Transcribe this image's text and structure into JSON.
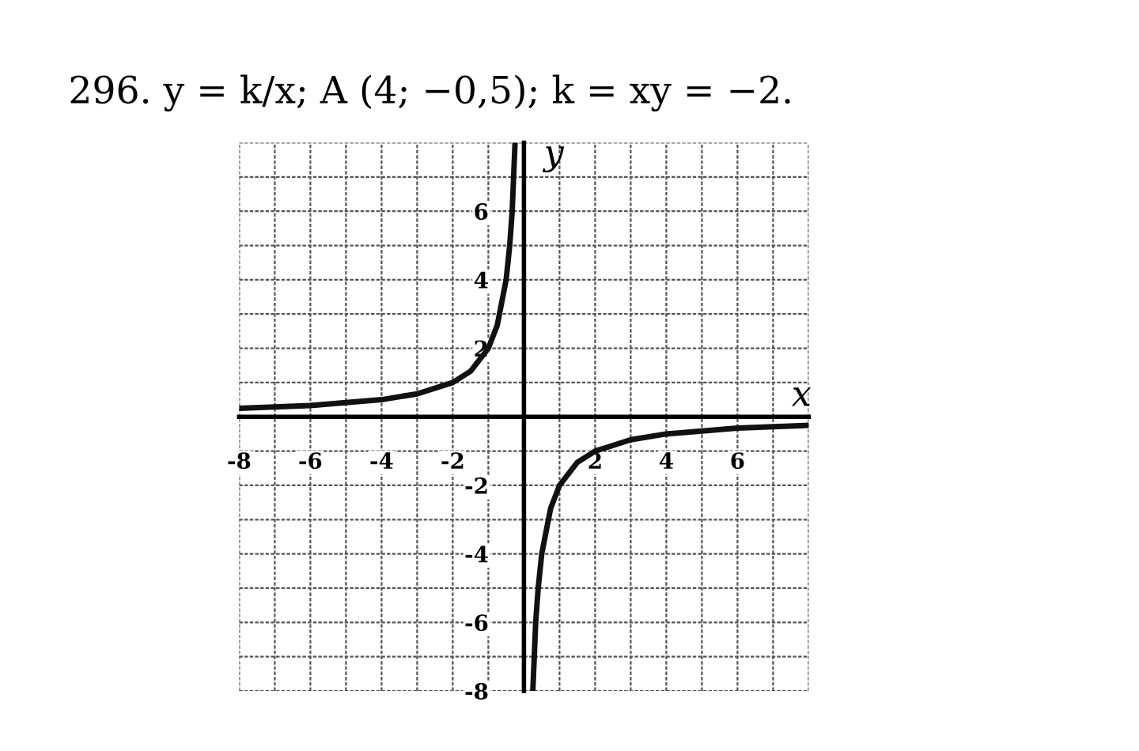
{
  "chart_data": {
    "type": "line",
    "title": "296. y = k/x; A (4; −0,5); k = xy = −2.",
    "xlabel": "x",
    "ylabel": "y",
    "x": [
      -8,
      -6,
      -4,
      -3,
      -2,
      -1.5,
      -1,
      -0.75,
      -0.5,
      -0.4,
      -0.33,
      -0.25,
      null,
      0.25,
      0.33,
      0.4,
      0.5,
      0.75,
      1,
      1.5,
      2,
      3,
      4,
      6,
      8
    ],
    "series": [
      {
        "color": "#111111",
        "values": [
          0.25,
          0.33,
          0.5,
          0.67,
          1,
          1.33,
          2,
          2.67,
          4,
          5,
          6,
          8,
          null,
          -8,
          -6,
          -5,
          -4,
          -2.67,
          -2,
          -1.33,
          -1,
          -0.67,
          -0.5,
          -0.33,
          -0.25
        ]
      }
    ],
    "xlim": [
      -8,
      8
    ],
    "ylim": [
      -8,
      8
    ],
    "xticks": [
      -8,
      -6,
      -4,
      -2,
      2,
      4,
      6
    ],
    "yticks": [
      -8,
      -6,
      -4,
      -2,
      2,
      4,
      6
    ],
    "grid": true,
    "marker": "none",
    "line_style": "solid",
    "legend": false
  }
}
